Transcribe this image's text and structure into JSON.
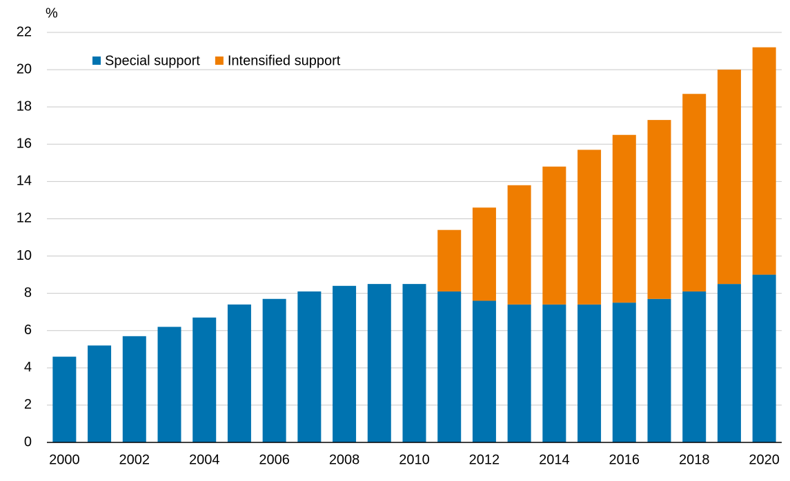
{
  "chart_data": {
    "type": "stacked_bar",
    "y_label": "%",
    "categories": [
      "2000",
      null,
      "2002",
      null,
      "2004",
      null,
      "2006",
      null,
      "2008",
      null,
      "2010",
      null,
      "2012",
      null,
      "2014",
      null,
      "2016",
      null,
      "2018",
      null,
      "2020"
    ],
    "series": [
      {
        "name": "Special support",
        "color": "#0073b0",
        "values": [
          4.6,
          5.2,
          5.7,
          6.2,
          6.7,
          7.4,
          7.7,
          8.1,
          8.4,
          8.5,
          8.5,
          8.1,
          7.6,
          7.4,
          7.4,
          7.4,
          7.5,
          7.7,
          8.1,
          8.5,
          9.0
        ]
      },
      {
        "name": "Intensified support",
        "color": "#ef7d00",
        "values": [
          null,
          null,
          null,
          null,
          null,
          null,
          null,
          null,
          null,
          null,
          null,
          3.3,
          5.0,
          6.4,
          7.4,
          8.3,
          9.0,
          9.6,
          10.6,
          11.5,
          12.2
        ]
      }
    ],
    "ylim": [
      0,
      22
    ],
    "yticks": [
      0,
      2,
      4,
      6,
      8,
      10,
      12,
      14,
      16,
      18,
      20,
      22
    ],
    "grid": true,
    "legend": "upper left"
  }
}
